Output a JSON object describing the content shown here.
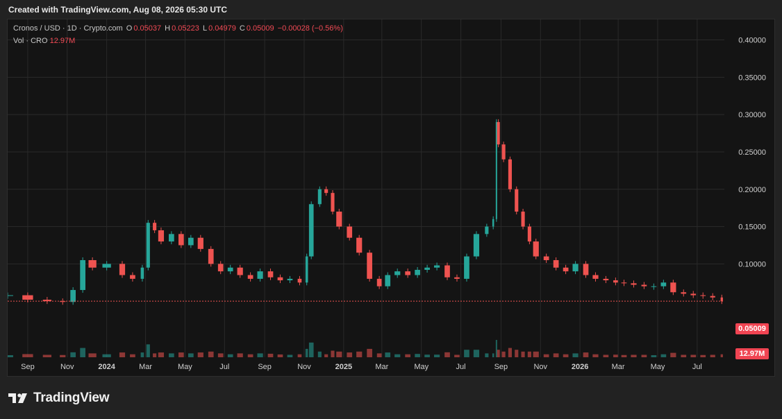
{
  "caption": "Created with TradingView.com, Aug 08, 2026 05:30 UTC",
  "header": {
    "symbol": "Cronos / USD · 1D · Crypto.com",
    "open_label": "O",
    "open": "0.05037",
    "high_label": "H",
    "high": "0.05223",
    "low_label": "L",
    "low": "0.04979",
    "close_label": "C",
    "close": "0.05009",
    "change": "−0.00028 (−0.56%)"
  },
  "volume": {
    "label": "Vol · CRO",
    "value": "12.97M"
  },
  "badges": {
    "last_price": "0.05009",
    "last_volume": "12.97M"
  },
  "brand": {
    "name": "TradingView"
  },
  "colors": {
    "up": "#26a69a",
    "down": "#ef5350",
    "background": "#141414",
    "grid": "#2a2a2a",
    "badge": "#f04452"
  },
  "chart_data": {
    "type": "line",
    "title": "Cronos / USD · 1D · Crypto.com",
    "y_axis_ticks": [
      "0.40000",
      "0.35000",
      "0.30000",
      "0.25000",
      "0.20000",
      "0.15000",
      "0.10000"
    ],
    "ylim": [
      0.0,
      0.42
    ],
    "x_axis_ticks": [
      {
        "label": "Sep",
        "date": "2023-09-01",
        "bold": false
      },
      {
        "label": "Nov",
        "date": "2023-11-01",
        "bold": false
      },
      {
        "label": "2024",
        "date": "2024-01-01",
        "bold": true
      },
      {
        "label": "Mar",
        "date": "2024-03-01",
        "bold": false
      },
      {
        "label": "May",
        "date": "2024-05-01",
        "bold": false
      },
      {
        "label": "Jul",
        "date": "2024-07-01",
        "bold": false
      },
      {
        "label": "Sep",
        "date": "2024-09-01",
        "bold": false
      },
      {
        "label": "Nov",
        "date": "2024-11-01",
        "bold": false
      },
      {
        "label": "2025",
        "date": "2025-01-01",
        "bold": true
      },
      {
        "label": "Mar",
        "date": "2025-03-01",
        "bold": false
      },
      {
        "label": "May",
        "date": "2025-05-01",
        "bold": false
      },
      {
        "label": "Jul",
        "date": "2025-07-01",
        "bold": false
      },
      {
        "label": "Sep",
        "date": "2025-09-01",
        "bold": false
      },
      {
        "label": "Nov",
        "date": "2025-11-01",
        "bold": false
      },
      {
        "label": "2026",
        "date": "2026-01-01",
        "bold": true
      },
      {
        "label": "Mar",
        "date": "2026-03-01",
        "bold": false
      },
      {
        "label": "May",
        "date": "2026-05-01",
        "bold": false
      },
      {
        "label": "Jul",
        "date": "2026-07-01",
        "bold": false
      }
    ],
    "series": [
      {
        "name": "CRO/USD",
        "x": [
          "2023-08-01",
          "2023-09-01",
          "2023-10-01",
          "2023-10-25",
          "2023-11-10",
          "2023-11-25",
          "2023-12-10",
          "2024-01-01",
          "2024-01-25",
          "2024-02-10",
          "2024-02-25",
          "2024-03-05",
          "2024-03-15",
          "2024-03-25",
          "2024-04-10",
          "2024-04-25",
          "2024-05-10",
          "2024-05-25",
          "2024-06-10",
          "2024-06-25",
          "2024-07-10",
          "2024-07-25",
          "2024-08-10",
          "2024-08-25",
          "2024-09-10",
          "2024-09-25",
          "2024-10-10",
          "2024-10-25",
          "2024-11-05",
          "2024-11-12",
          "2024-11-25",
          "2024-12-05",
          "2024-12-15",
          "2024-12-25",
          "2025-01-10",
          "2025-01-25",
          "2025-02-10",
          "2025-02-25",
          "2025-03-10",
          "2025-03-25",
          "2025-04-10",
          "2025-04-25",
          "2025-05-10",
          "2025-05-25",
          "2025-06-10",
          "2025-06-25",
          "2025-07-10",
          "2025-07-25",
          "2025-08-10",
          "2025-08-20",
          "2025-08-25",
          "2025-08-28",
          "2025-09-05",
          "2025-09-15",
          "2025-09-25",
          "2025-10-05",
          "2025-10-15",
          "2025-10-25",
          "2025-11-10",
          "2025-11-25",
          "2025-12-10",
          "2025-12-25",
          "2026-01-10",
          "2026-01-25",
          "2026-02-10",
          "2026-02-25",
          "2026-03-10",
          "2026-03-25",
          "2026-04-10",
          "2026-04-25",
          "2026-05-10",
          "2026-05-25",
          "2026-06-10",
          "2026-06-25",
          "2026-07-10",
          "2026-07-25",
          "2026-08-08"
        ],
        "values": [
          0.058,
          0.052,
          0.05,
          0.049,
          0.065,
          0.105,
          0.095,
          0.1,
          0.085,
          0.08,
          0.095,
          0.155,
          0.145,
          0.13,
          0.14,
          0.125,
          0.135,
          0.12,
          0.1,
          0.09,
          0.095,
          0.085,
          0.08,
          0.09,
          0.082,
          0.078,
          0.08,
          0.075,
          0.11,
          0.18,
          0.2,
          0.195,
          0.17,
          0.15,
          0.135,
          0.115,
          0.08,
          0.07,
          0.085,
          0.09,
          0.085,
          0.092,
          0.095,
          0.098,
          0.082,
          0.08,
          0.11,
          0.14,
          0.15,
          0.16,
          0.29,
          0.26,
          0.24,
          0.2,
          0.17,
          0.15,
          0.13,
          0.11,
          0.105,
          0.095,
          0.09,
          0.1,
          0.085,
          0.08,
          0.078,
          0.075,
          0.074,
          0.072,
          0.07,
          0.07,
          0.075,
          0.062,
          0.06,
          0.058,
          0.057,
          0.055,
          0.05
        ]
      }
    ],
    "last_close": 0.05009,
    "grid": true,
    "volume_panel": true
  }
}
